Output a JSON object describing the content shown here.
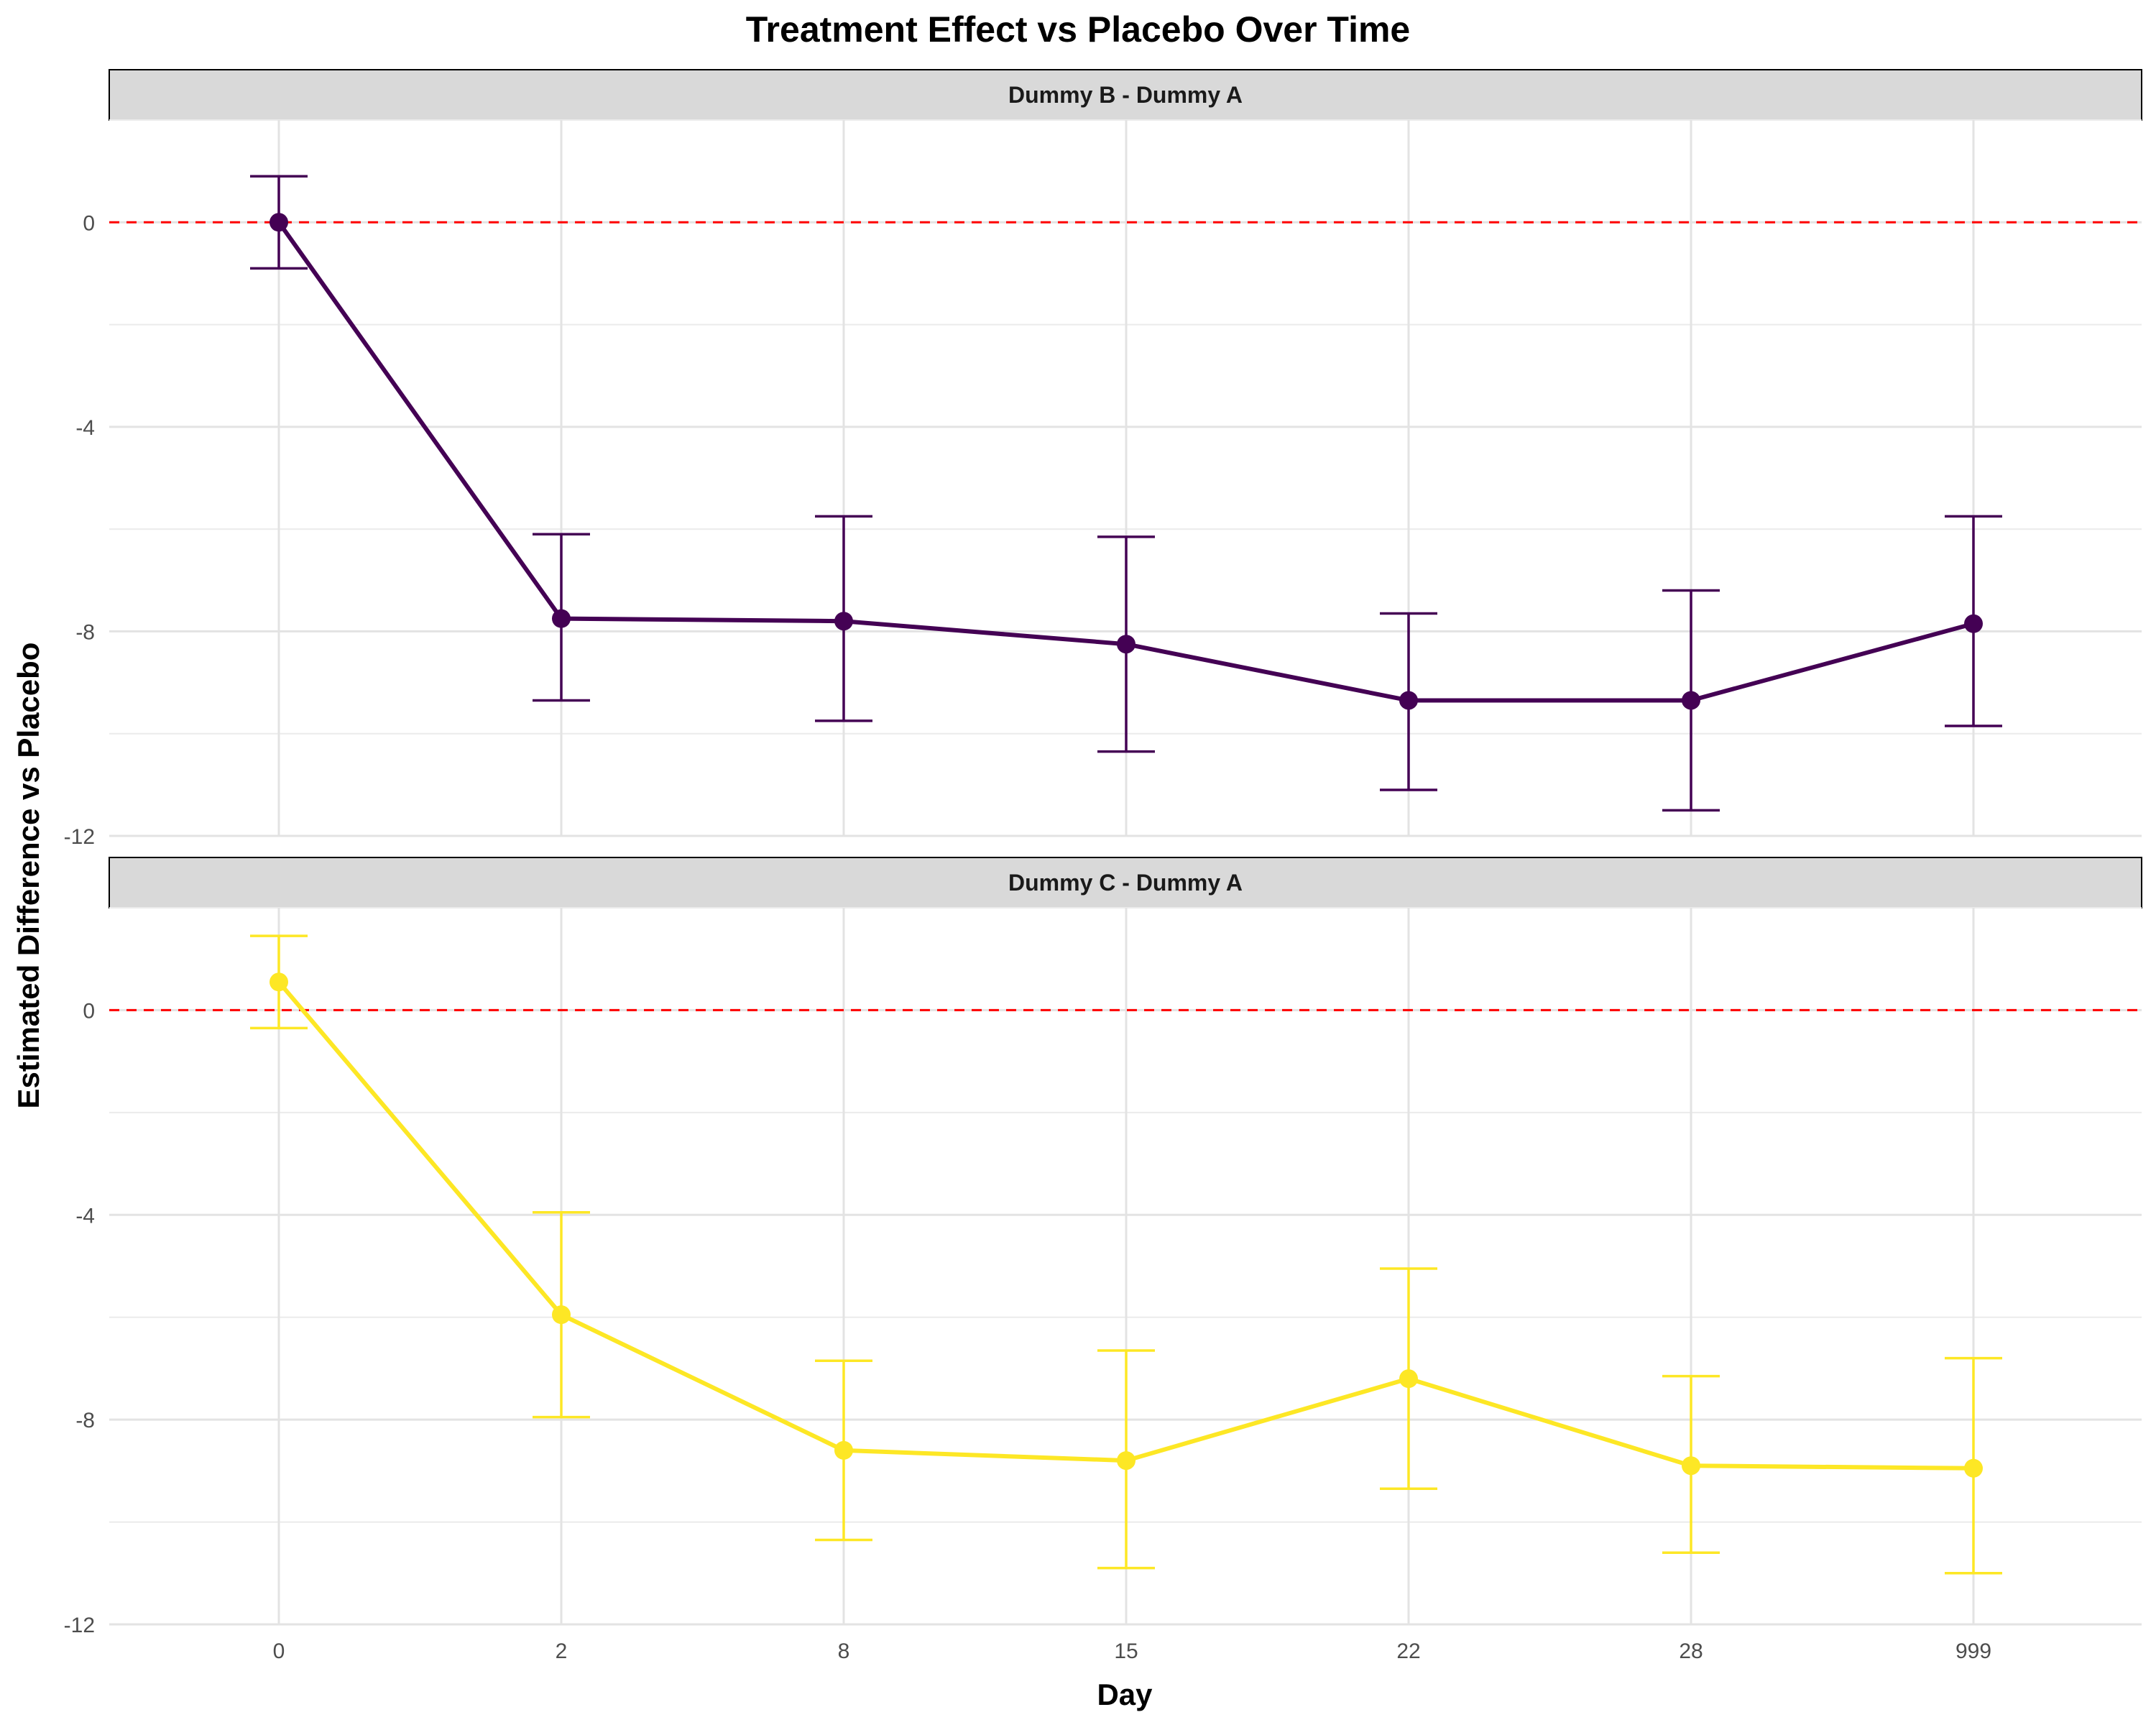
{
  "chart_data": {
    "type": "line",
    "title": "Treatment Effect vs Placebo Over Time",
    "xlabel": "Day",
    "ylabel": "Estimated Difference vs Placebo",
    "categories": [
      "0",
      "2",
      "8",
      "15",
      "22",
      "28",
      "999"
    ],
    "ylim": [
      -12,
      2
    ],
    "y_ticks": [
      0,
      -4,
      -8,
      -12
    ],
    "reference_line": {
      "y": 0,
      "color": "#ff0000",
      "style": "dashed"
    },
    "grid": true,
    "panels": [
      {
        "name": "Dummy B - Dummy A",
        "color": "#440154",
        "values": [
          0.0,
          -7.75,
          -7.8,
          -8.25,
          -9.35,
          -9.35,
          -7.85
        ],
        "lower": [
          -0.9,
          -9.35,
          -9.75,
          -10.35,
          -11.1,
          -11.5,
          -9.85
        ],
        "upper": [
          0.9,
          -6.1,
          -5.75,
          -6.15,
          -7.65,
          -7.2,
          -5.75
        ]
      },
      {
        "name": "Dummy C - Dummy A",
        "color": "#fde725",
        "values": [
          0.55,
          -5.95,
          -8.6,
          -8.8,
          -7.2,
          -8.9,
          -8.95
        ],
        "lower": [
          -0.35,
          -7.95,
          -10.35,
          -10.9,
          -9.35,
          -10.6,
          -11.0
        ],
        "upper": [
          1.45,
          -3.95,
          -6.85,
          -6.65,
          -5.05,
          -7.15,
          -6.8
        ]
      }
    ]
  }
}
